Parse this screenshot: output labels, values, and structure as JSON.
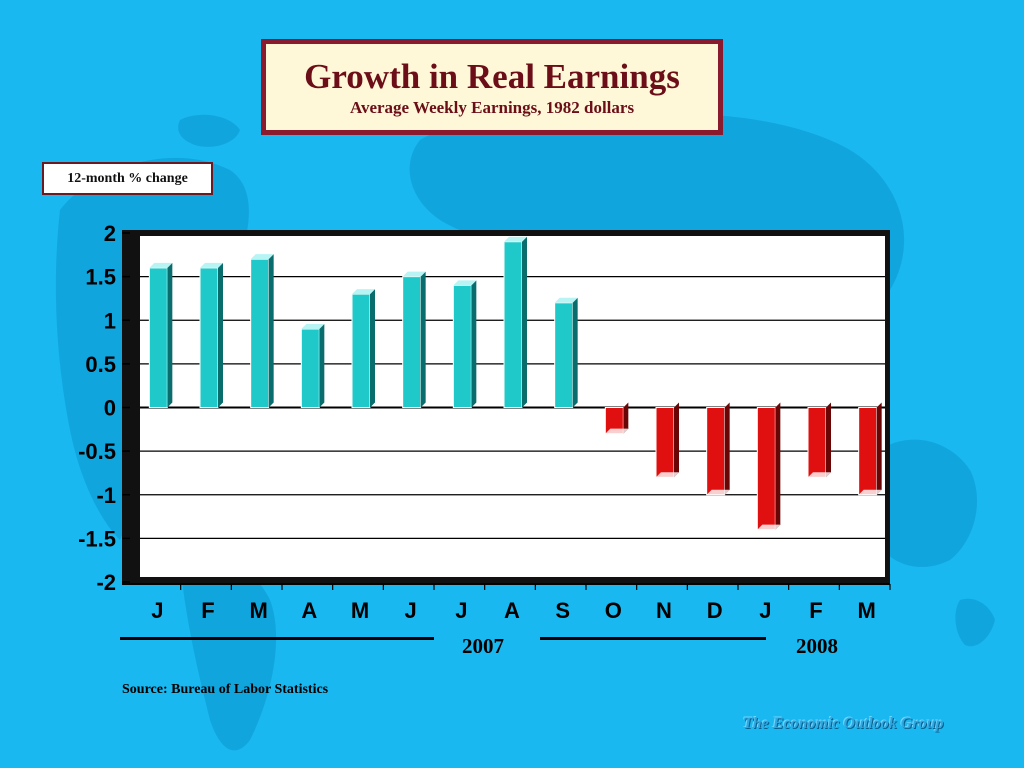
{
  "slide": {
    "title": "Growth in Real Earnings",
    "subtitle": "Average Weekly Earnings, 1982 dollars",
    "unit_label": "12-month % change",
    "source": "Source: Bureau of Labor Statistics",
    "brand": "The Economic Outlook Group",
    "year_labels": [
      "2007",
      "2008"
    ]
  },
  "colors": {
    "background": "#19b8f0",
    "positive_bar": "#1fc9c9",
    "negative_bar": "#e01010",
    "plot_area": "#ffffff",
    "title_text": "#6b0e18"
  },
  "chart_data": {
    "type": "bar",
    "categories": [
      "J",
      "F",
      "M",
      "A",
      "M",
      "J",
      "J",
      "A",
      "S",
      "O",
      "N",
      "D",
      "J",
      "F",
      "M"
    ],
    "series": [
      {
        "values": [
          1.6,
          1.6,
          1.7,
          0.9,
          1.3,
          1.5,
          1.4,
          1.9,
          1.2,
          -0.3,
          -0.8,
          -1.0,
          -1.4,
          -0.8,
          -1.0
        ]
      }
    ],
    "y_ticks": [
      "2",
      "1.5",
      "1",
      "0.5",
      "0",
      "-0.5",
      "-1",
      "-1.5",
      "-2"
    ],
    "ylim": [
      -2,
      2
    ],
    "grid": true,
    "xlabel": "",
    "ylabel": ""
  }
}
